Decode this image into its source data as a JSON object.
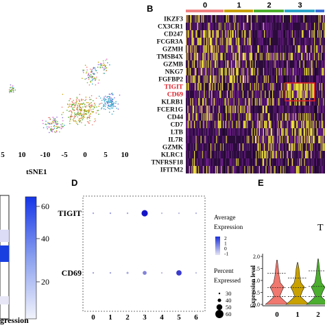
{
  "chart_data": [
    {
      "panel": "",
      "type": "scatter",
      "xlabel": "tSNE1",
      "x_ticks": [
        "5",
        "10",
        "-10",
        "-5",
        "0",
        "5",
        "10"
      ]
    },
    {
      "panel": "B",
      "type": "heatmap",
      "clusters": [
        "0",
        "1",
        "2",
        "3",
        ""
      ],
      "cluster_colors": [
        "#f08080",
        "#c8a000",
        "#4cae2e",
        "#2aa4c8",
        "#3a6fd8"
      ],
      "genes": [
        "IKZF3",
        "CX3CR1",
        "CD247",
        "FCGR3A",
        "GZMH",
        "TMSB4X",
        "GZMB",
        "NKG7",
        "FGFBP2",
        "TIGIT",
        "CD69",
        "KLRB1",
        "FCER1G",
        "CD44",
        "CD7",
        "LTB",
        "IL7R",
        "GZMK",
        "KLRC1",
        "TNFRSF18",
        "IFITM2"
      ],
      "highlighted_genes": [
        "TIGIT",
        "CD69"
      ],
      "highlight_color": "#e0202a"
    },
    {
      "panel": "",
      "type": "heatmap",
      "xlabel": "gression",
      "colorbar_ticks": [
        "60",
        "40",
        "20"
      ]
    },
    {
      "panel": "D",
      "type": "scatter",
      "subtype": "dot",
      "categories": [
        "0",
        "1",
        "2",
        "3",
        "4",
        "5",
        "6"
      ],
      "genes": [
        "TIGIT",
        "CD69"
      ],
      "avg_expression_legend": {
        "title_lines": [
          "Average",
          "Expression"
        ],
        "ticks": [
          "2",
          "1",
          "0",
          "-1"
        ]
      },
      "percent_legend": {
        "title_lines": [
          "Percent",
          "Expressed"
        ],
        "values": [
          "30",
          "40",
          "50",
          "60"
        ]
      },
      "series": [
        {
          "name": "TIGIT",
          "percent": [
            32,
            32,
            32,
            52,
            28,
            28,
            30
          ],
          "avg_expression": [
            -0.3,
            -0.2,
            -0.3,
            2.0,
            -0.6,
            -0.6,
            -0.5
          ]
        },
        {
          "name": "CD69",
          "percent": [
            32,
            32,
            34,
            42,
            28,
            48,
            30
          ],
          "avg_expression": [
            -0.2,
            -0.2,
            -0.2,
            0.3,
            -0.6,
            1.4,
            -0.6
          ]
        }
      ]
    },
    {
      "panel": "E",
      "type": "area",
      "subtype": "violin",
      "title": "T",
      "ylabel": "Expression level",
      "ylim": [
        0,
        2.0
      ],
      "y_ticks": [
        "2.0",
        "1.5",
        "1.0",
        "0.5",
        "0.0"
      ],
      "categories": [
        "0",
        "1",
        "2"
      ],
      "series": [
        {
          "name": "0",
          "color": "#f0786e",
          "max": 1.85,
          "quantiles": [
            0.33,
            0.7,
            1.3
          ]
        },
        {
          "name": "1",
          "color": "#c9a100",
          "max": 1.75,
          "quantiles": [
            0.33,
            0.7,
            1.1
          ]
        },
        {
          "name": "2",
          "color": "#4cae2e",
          "max": 1.9,
          "quantiles": [
            0.33,
            0.75,
            1.4
          ]
        }
      ]
    }
  ]
}
